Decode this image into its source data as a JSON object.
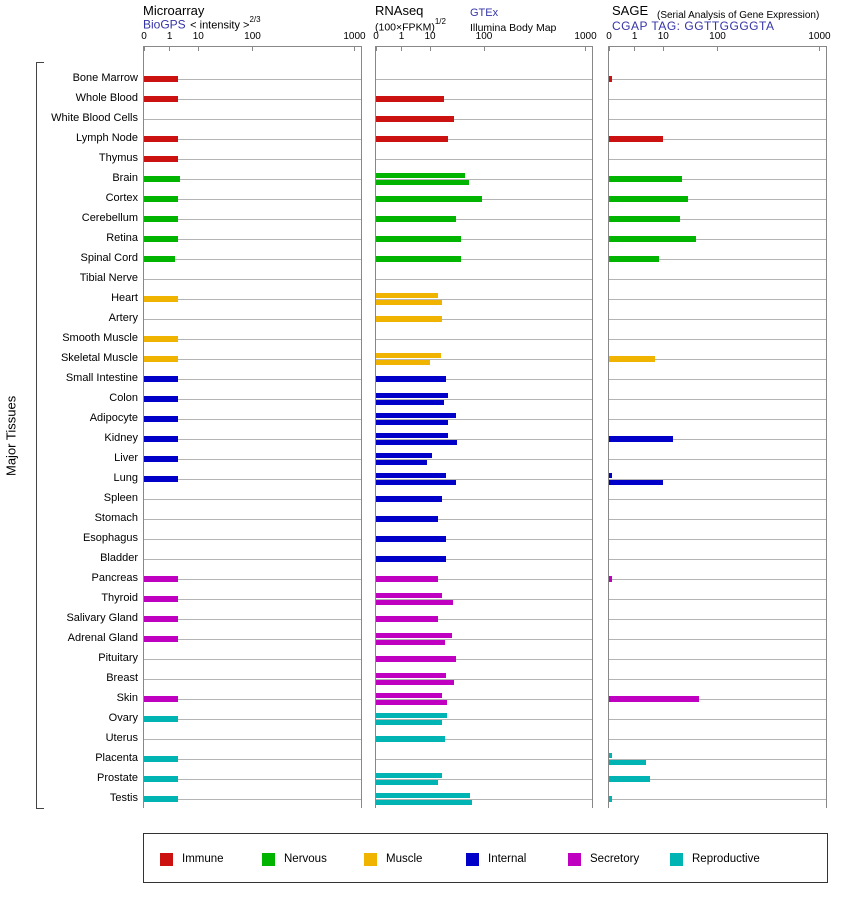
{
  "side_label": "Major Tissues",
  "axis_ticks": [
    "0",
    "1",
    "10",
    "100",
    "1000"
  ],
  "panels": {
    "microarray": {
      "title": "Microarray",
      "link": "BioGPS",
      "transform_prefix": "< intensity >",
      "transform_exp": "2/3"
    },
    "rnaseq": {
      "title": "RNAseq",
      "link": "GTEx",
      "formula": "(100×FPKM)",
      "formula_exp": "1/2",
      "dataset2": "Illumina Body Map"
    },
    "sage": {
      "title": "SAGE",
      "subtitle": "(Serial Analysis of Gene Expression)",
      "link": "CGAP TAG: GGTTGGGGTA"
    }
  },
  "legend": [
    {
      "label": "Immune",
      "color": "#cc1111"
    },
    {
      "label": "Nervous",
      "color": "#00b400"
    },
    {
      "label": "Muscle",
      "color": "#f0b400"
    },
    {
      "label": "Internal",
      "color": "#0000c8"
    },
    {
      "label": "Secretory",
      "color": "#c000c0"
    },
    {
      "label": "Reproductive",
      "color": "#00b4b4"
    }
  ],
  "chart_data": {
    "type": "bar",
    "orientation": "horizontal",
    "panels": [
      "Microarray",
      "RNAseq",
      "SAGE"
    ],
    "x_ticks": [
      0,
      1,
      10,
      100,
      1000
    ],
    "x_scale": "power-transformed log-like axis, ticks 0,1,10,100,1000",
    "grid": true,
    "note": "values estimated from bar lengths; up to two sub-bars per tissue per panel",
    "tissues": [
      {
        "name": "Bone Marrow",
        "group": "Immune",
        "microarray": [
          2
        ],
        "rnaseq": [],
        "sage": [
          0.1
        ]
      },
      {
        "name": "Whole Blood",
        "group": "Immune",
        "microarray": [
          2
        ],
        "rnaseq": [
          18
        ],
        "sage": []
      },
      {
        "name": "White Blood Cells",
        "group": "Immune",
        "microarray": [],
        "rnaseq": [
          28
        ],
        "sage": []
      },
      {
        "name": "Lymph Node",
        "group": "Immune",
        "microarray": [
          2
        ],
        "rnaseq": [
          22
        ],
        "sage": [
          10
        ]
      },
      {
        "name": "Thymus",
        "group": "Immune",
        "microarray": [
          2
        ],
        "rnaseq": [],
        "sage": []
      },
      {
        "name": "Brain",
        "group": "Nervous",
        "microarray": [
          2.3
        ],
        "rnaseq": [
          45,
          52
        ],
        "sage": [
          22
        ]
      },
      {
        "name": "Cortex",
        "group": "Nervous",
        "microarray": [
          2
        ],
        "rnaseq": [
          90
        ],
        "sage": [
          28
        ]
      },
      {
        "name": "Cerebellum",
        "group": "Nervous",
        "microarray": [
          2
        ],
        "rnaseq": [
          30
        ],
        "sage": [
          20
        ]
      },
      {
        "name": "Retina",
        "group": "Nervous",
        "microarray": [
          2
        ],
        "rnaseq": [
          38
        ],
        "sage": [
          40
        ]
      },
      {
        "name": "Spinal Cord",
        "group": "Nervous",
        "microarray": [
          1.6
        ],
        "rnaseq": [
          38
        ],
        "sage": [
          7
        ]
      },
      {
        "name": "Tibial Nerve",
        "group": "Nervous",
        "microarray": [],
        "rnaseq": [],
        "sage": []
      },
      {
        "name": "Heart",
        "group": "Muscle",
        "microarray": [
          2
        ],
        "rnaseq": [
          14,
          17
        ],
        "sage": []
      },
      {
        "name": "Artery",
        "group": "Muscle",
        "microarray": [],
        "rnaseq": [
          17
        ],
        "sage": []
      },
      {
        "name": "Smooth Muscle",
        "group": "Muscle",
        "microarray": [
          2
        ],
        "rnaseq": [],
        "sage": []
      },
      {
        "name": "Skeletal Muscle",
        "group": "Muscle",
        "microarray": [
          2
        ],
        "rnaseq": [
          16,
          10
        ],
        "sage": [
          5
        ]
      },
      {
        "name": "Small Intestine",
        "group": "Internal",
        "microarray": [
          2
        ],
        "rnaseq": [
          20
        ],
        "sage": []
      },
      {
        "name": "Colon",
        "group": "Internal",
        "microarray": [
          2
        ],
        "rnaseq": [
          22,
          18
        ],
        "sage": []
      },
      {
        "name": "Adipocyte",
        "group": "Internal",
        "microarray": [
          2
        ],
        "rnaseq": [
          30,
          22
        ],
        "sage": []
      },
      {
        "name": "Kidney",
        "group": "Internal",
        "microarray": [
          2
        ],
        "rnaseq": [
          22,
          32
        ],
        "sage": [
          15
        ]
      },
      {
        "name": "Liver",
        "group": "Internal",
        "microarray": [
          2
        ],
        "rnaseq": [
          11,
          8
        ],
        "sage": []
      },
      {
        "name": "Lung",
        "group": "Internal",
        "microarray": [
          2
        ],
        "rnaseq": [
          20,
          30
        ],
        "sage": [
          0.1,
          10
        ]
      },
      {
        "name": "Spleen",
        "group": "Internal",
        "microarray": [],
        "rnaseq": [
          17
        ],
        "sage": []
      },
      {
        "name": "Stomach",
        "group": "Internal",
        "microarray": [],
        "rnaseq": [
          14
        ],
        "sage": []
      },
      {
        "name": "Esophagus",
        "group": "Internal",
        "microarray": [],
        "rnaseq": [
          20
        ],
        "sage": []
      },
      {
        "name": "Bladder",
        "group": "Internal",
        "microarray": [],
        "rnaseq": [
          20
        ],
        "sage": []
      },
      {
        "name": "Pancreas",
        "group": "Secretory",
        "microarray": [
          2
        ],
        "rnaseq": [
          14
        ],
        "sage": [
          0.1
        ]
      },
      {
        "name": "Thyroid",
        "group": "Secretory",
        "microarray": [
          2
        ],
        "rnaseq": [
          17,
          27
        ],
        "sage": []
      },
      {
        "name": "Salivary Gland",
        "group": "Secretory",
        "microarray": [
          2
        ],
        "rnaseq": [
          14
        ],
        "sage": []
      },
      {
        "name": "Adrenal Gland",
        "group": "Secretory",
        "microarray": [
          2
        ],
        "rnaseq": [
          26,
          19
        ],
        "sage": []
      },
      {
        "name": "Pituitary",
        "group": "Secretory",
        "microarray": [],
        "rnaseq": [
          30
        ],
        "sage": []
      },
      {
        "name": "Breast",
        "group": "Secretory",
        "microarray": [],
        "rnaseq": [
          20,
          28
        ],
        "sage": []
      },
      {
        "name": "Skin",
        "group": "Secretory",
        "microarray": [
          2
        ],
        "rnaseq": [
          17,
          21
        ],
        "sage": [
          45
        ]
      },
      {
        "name": "Ovary",
        "group": "Reproductive",
        "microarray": [
          2
        ],
        "rnaseq": [
          21,
          17
        ],
        "sage": []
      },
      {
        "name": "Uterus",
        "group": "Reproductive",
        "microarray": [],
        "rnaseq": [
          19
        ],
        "sage": []
      },
      {
        "name": "Placenta",
        "group": "Reproductive",
        "microarray": [
          2
        ],
        "rnaseq": [],
        "sage": [
          0.1,
          2.5
        ]
      },
      {
        "name": "Prostate",
        "group": "Reproductive",
        "microarray": [
          2
        ],
        "rnaseq": [
          17,
          14
        ],
        "sage": [
          3.5
        ]
      },
      {
        "name": "Testis",
        "group": "Reproductive",
        "microarray": [
          2
        ],
        "rnaseq": [
          55,
          60
        ],
        "sage": [
          0.1
        ]
      }
    ]
  }
}
